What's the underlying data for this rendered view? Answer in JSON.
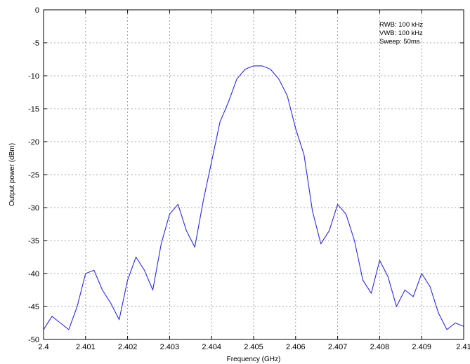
{
  "chart_data": {
    "type": "line",
    "title": "",
    "xlabel": "Frequency (GHz)",
    "ylabel": "Output power (dBm)",
    "xlim": [
      2.4,
      2.41
    ],
    "ylim": [
      -50,
      0
    ],
    "x_ticks": [
      "2.4",
      "2.401",
      "2.402",
      "2.403",
      "2.404",
      "2.405",
      "2.406",
      "2.407",
      "2.408",
      "2.409",
      "2.41"
    ],
    "y_ticks": [
      "0",
      "-5",
      "-10",
      "-15",
      "-20",
      "-25",
      "-30",
      "-35",
      "-40",
      "-45",
      "-50"
    ],
    "grid": true,
    "annotations": [
      "RWB: 100 kHz",
      "VWB: 100 kHz",
      "Sweep: 50ms"
    ],
    "colors": {
      "series": "#2a2ae6",
      "grid": "#8c8c8c"
    },
    "series": [
      {
        "x": [
          2.4,
          2.4002,
          2.4004,
          2.4006,
          2.4008,
          2.401,
          2.4012,
          2.4014,
          2.4016,
          2.4018,
          2.402,
          2.4022,
          2.4024,
          2.4026,
          2.4028,
          2.403,
          2.4032,
          2.4034,
          2.4036,
          2.4038,
          2.404,
          2.4042,
          2.4044,
          2.4046,
          2.4048,
          2.405,
          2.4052,
          2.4054,
          2.4056,
          2.4058,
          2.406,
          2.4062,
          2.4064,
          2.4066,
          2.4068,
          2.407,
          2.4072,
          2.4074,
          2.4076,
          2.4078,
          2.408,
          2.4082,
          2.4084,
          2.4086,
          2.4088,
          2.409,
          2.4092,
          2.4094,
          2.4096,
          2.4098,
          2.41
        ],
        "y": [
          -48.5,
          -46.5,
          -47.5,
          -48.5,
          -45,
          -40,
          -39.5,
          -42.5,
          -44.5,
          -47,
          -41,
          -37.5,
          -39.5,
          -42.5,
          -35.5,
          -31,
          -29.5,
          -33.5,
          -36,
          -29,
          -23,
          -17,
          -14,
          -10.5,
          -9,
          -8.5,
          -8.5,
          -9,
          -10.5,
          -13,
          -18,
          -22,
          -30.5,
          -35.5,
          -33.5,
          -29.5,
          -31,
          -35,
          -41,
          -43,
          -38,
          -40.5,
          -45,
          -42.5,
          -43.5,
          -40,
          -42,
          -46,
          -48.5,
          -47.5,
          -48
        ]
      }
    ]
  }
}
